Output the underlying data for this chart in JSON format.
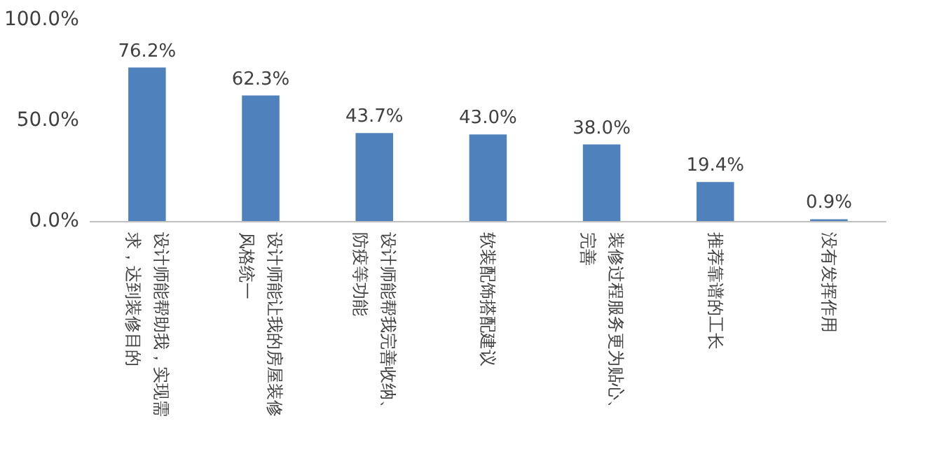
{
  "chart_data": {
    "type": "bar",
    "categories": [
      "设计师能帮助我，实现需求，达到装修目的",
      "设计师能让我的房屋装修风格统一",
      "设计师能帮我完善收纳、防疫等功能",
      "软装配饰搭配建议",
      "装修过程服务更为贴心、完善",
      "推荐靠谱的工长",
      "没有发挥作用"
    ],
    "values": [
      76.2,
      62.3,
      43.7,
      43.0,
      38.0,
      19.4,
      0.9
    ],
    "value_labels": [
      "76.2%",
      "62.3%",
      "43.7%",
      "43.0%",
      "38.0%",
      "19.4%",
      "0.9%"
    ],
    "color": "#4f81bd",
    "ylim": [
      0,
      100
    ],
    "yticks": [
      {
        "value": 0,
        "label": "0.0%"
      },
      {
        "value": 50,
        "label": "50.0%"
      },
      {
        "value": 100,
        "label": "100.0%"
      }
    ]
  }
}
